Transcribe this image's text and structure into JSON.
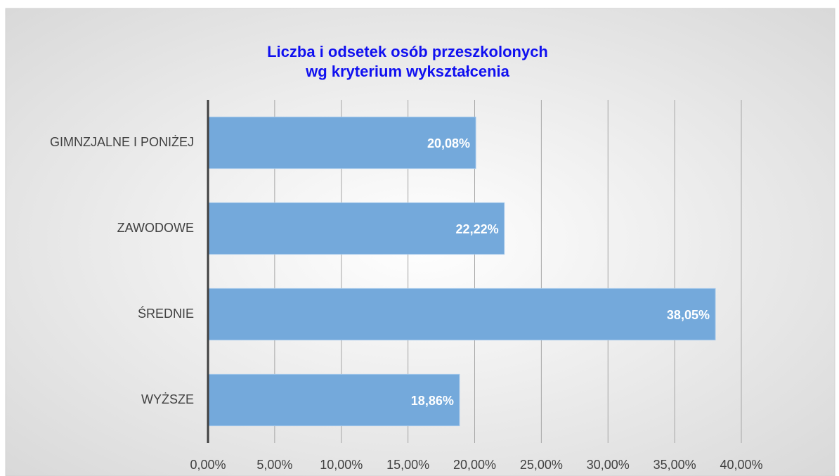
{
  "chart_data": {
    "type": "barh",
    "title": [
      "Liczba i odsetek osób przeszkolonych",
      "wg  kryterium wykształcenia"
    ],
    "categories": [
      "GIMNZJALNE I PONIŻEJ",
      "ZAWODOWE",
      "ŚREDNIE",
      "WYŻSZE"
    ],
    "values": [
      20.08,
      22.22,
      38.05,
      18.86
    ],
    "value_labels": [
      "20,08%",
      "22,22%",
      "38,05%",
      "18,86%"
    ],
    "color": "#74a9db",
    "xlim": [
      0,
      40
    ],
    "xticks": [
      {
        "value": 0,
        "label": "0,00%"
      },
      {
        "value": 5,
        "label": "5,00%"
      },
      {
        "value": 10,
        "label": "10,00%"
      },
      {
        "value": 15,
        "label": "15,00%"
      },
      {
        "value": 20,
        "label": "20,00%"
      },
      {
        "value": 25,
        "label": "25,00%"
      },
      {
        "value": 30,
        "label": "30,00%"
      },
      {
        "value": 35,
        "label": "35,00%"
      },
      {
        "value": 40,
        "label": "40,00%"
      }
    ],
    "grid": true
  }
}
